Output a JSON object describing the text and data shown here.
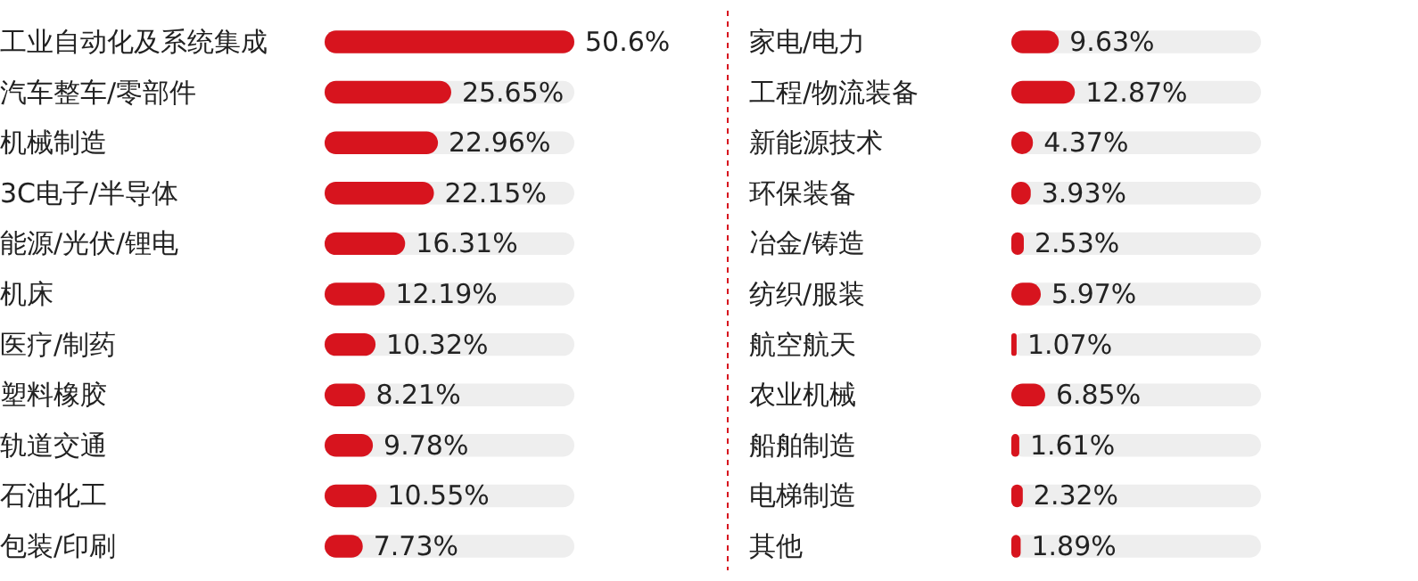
{
  "chart_data": [
    {
      "type": "bar",
      "orientation": "horizontal",
      "categories": [
        "工业自动化及系统集成",
        "汽车整车/零部件",
        "机械制造",
        "3C电子/半导体",
        "能源/光伏/锂电",
        "机床",
        "医疗/制药",
        "塑料橡胶",
        "轨道交通",
        "石油化工",
        "包装/印刷"
      ],
      "values": [
        50.6,
        25.65,
        22.96,
        22.15,
        16.31,
        12.19,
        10.32,
        8.21,
        9.78,
        10.55,
        7.73
      ],
      "value_labels": [
        "50.6%",
        "25.65%",
        "22.96%",
        "22.15%",
        "16.31%",
        "12.19%",
        "10.32%",
        "8.21%",
        "9.78%",
        "10.55%",
        "7.73%"
      ],
      "color": "#d7141e",
      "tick_labels": "y"
    },
    {
      "type": "bar",
      "orientation": "horizontal",
      "categories": [
        "家电/电力",
        "工程/物流装备",
        "新能源技术",
        "环保装备",
        "冶金/铸造",
        "纺织/服装",
        "航空航天",
        "农业机械",
        "船舶制造",
        "电梯制造",
        "其他"
      ],
      "values": [
        9.63,
        12.87,
        4.37,
        3.93,
        2.53,
        5.97,
        1.07,
        6.85,
        1.61,
        2.32,
        1.89
      ],
      "value_labels": [
        "9.63%",
        "12.87%",
        "4.37%",
        "3.93%",
        "2.53%",
        "5.97%",
        "1.07%",
        "6.85%",
        "1.61%",
        "2.32%",
        "1.89%"
      ],
      "color": "#d7141e",
      "tick_labels": "y"
    }
  ]
}
